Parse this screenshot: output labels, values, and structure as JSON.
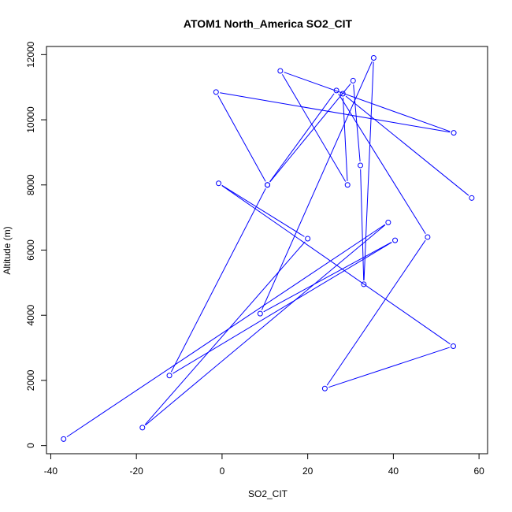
{
  "chart_data": {
    "type": "line",
    "title": "ATOM1 North_America SO2_CIT",
    "xlabel": "SO2_CIT",
    "ylabel": "Altitude (m)",
    "xlim": [
      -41,
      62
    ],
    "ylim": [
      -250,
      12250
    ],
    "xticks": [
      -40,
      -20,
      0,
      20,
      40,
      60
    ],
    "yticks": [
      0,
      2000,
      4000,
      6000,
      8000,
      10000,
      12000
    ],
    "grid": false,
    "series": [
      {
        "color": "#0000ff",
        "marker": "open-circle",
        "points": [
          {
            "x": -37,
            "y": 200
          },
          {
            "x": 38.8,
            "y": 6850
          },
          {
            "x": -18.6,
            "y": 550
          },
          {
            "x": 20,
            "y": 6350
          },
          {
            "x": -0.8,
            "y": 8050
          },
          {
            "x": 54,
            "y": 3050
          },
          {
            "x": 24,
            "y": 1750
          },
          {
            "x": 48,
            "y": 6400
          },
          {
            "x": 26.7,
            "y": 10900
          },
          {
            "x": 10.6,
            "y": 8000
          },
          {
            "x": 30.6,
            "y": 11200
          },
          {
            "x": 32.3,
            "y": 8600
          },
          {
            "x": 33.1,
            "y": 4950
          },
          {
            "x": 35.4,
            "y": 11900
          },
          {
            "x": 8.9,
            "y": 4050
          },
          {
            "x": 40.4,
            "y": 6300
          },
          {
            "x": -12.3,
            "y": 2150
          },
          {
            "x": 10.6,
            "y": 8000
          },
          {
            "x": -1.4,
            "y": 10850
          },
          {
            "x": 54.1,
            "y": 9600
          },
          {
            "x": 13.6,
            "y": 11500
          },
          {
            "x": 29.3,
            "y": 8000
          },
          {
            "x": 28.2,
            "y": 10800
          },
          {
            "x": 58.3,
            "y": 7600
          }
        ]
      }
    ]
  }
}
